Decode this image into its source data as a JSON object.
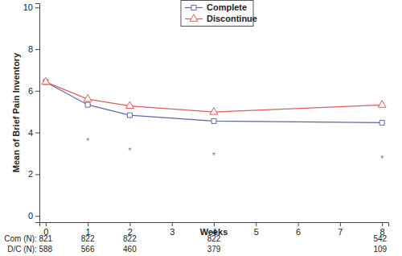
{
  "chart_data": {
    "type": "line",
    "x_label": "Weeks",
    "y_label": "Mean of Brief Pain Inventory",
    "x": [
      0,
      1,
      2,
      4,
      8
    ],
    "xlim": [
      -0.15,
      8.15
    ],
    "xticks": [
      0,
      1,
      2,
      3,
      4,
      5,
      6,
      7,
      8
    ],
    "ylim": [
      -0.3,
      10.2
    ],
    "yticks": [
      0,
      2,
      4,
      6,
      8,
      10
    ],
    "grid": false,
    "legend": "upper center",
    "series": [
      {
        "name": "Complete",
        "color": "#5a6aa8",
        "marker": "square",
        "line_style": "solid",
        "values": [
          6.42,
          5.33,
          4.83,
          4.55,
          4.47
        ]
      },
      {
        "name": "Discontinue",
        "color": "#dd5c5c",
        "marker": "triangle",
        "line_style": "solid",
        "values": [
          6.42,
          5.6,
          5.27,
          4.98,
          5.32
        ]
      }
    ],
    "annotations": [
      {
        "text": "*",
        "x": 1,
        "y": 3.65
      },
      {
        "text": "*",
        "x": 2,
        "y": 3.2
      },
      {
        "text": "*",
        "x": 4,
        "y": 2.95
      },
      {
        "text": "*",
        "x": 8,
        "y": 2.8
      }
    ],
    "counts": [
      {
        "label": "Com (N):",
        "values": [
          821,
          822,
          822,
          822,
          542
        ]
      },
      {
        "label": "D/C (N):",
        "values": [
          588,
          566,
          460,
          379,
          109
        ]
      }
    ]
  }
}
